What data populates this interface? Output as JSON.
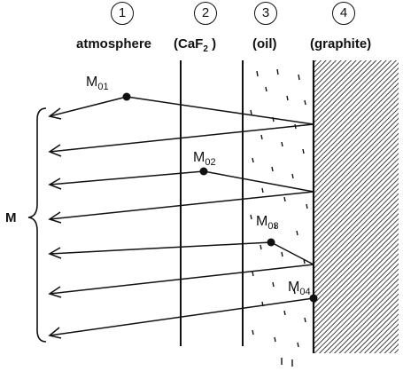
{
  "layers": [
    {
      "number": "1",
      "name": "atmosphere"
    },
    {
      "number": "2",
      "name": "(CaF",
      "name_sub": "2",
      "name_tail": " )"
    },
    {
      "number": "3",
      "name": "(oil)"
    },
    {
      "number": "4",
      "name": "(graphite)"
    }
  ],
  "points": [
    {
      "label": "M",
      "sub": "01"
    },
    {
      "label": "M",
      "sub": "02"
    },
    {
      "label": "M",
      "sub": "03"
    },
    {
      "label": "M",
      "sub": "04"
    }
  ],
  "sum_label": "M",
  "colors": {
    "ink": "#111111",
    "background": "#ffffff"
  }
}
